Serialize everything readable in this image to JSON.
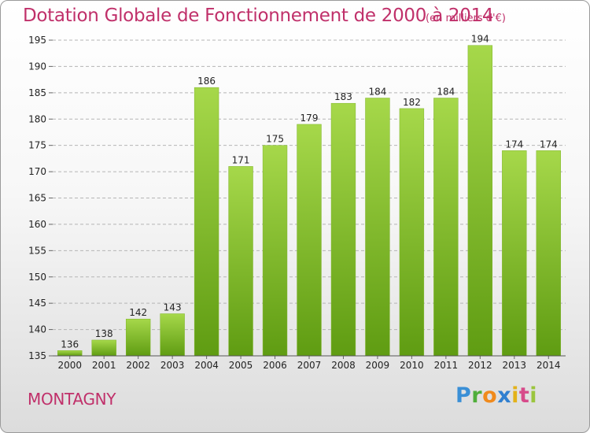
{
  "title": "Dotation Globale de Fonctionnement de 2000 à 2014",
  "subtitle": "(en milliers d'€)",
  "place": "MONTAGNY",
  "logo": {
    "p": "P",
    "r": "r",
    "o": "o",
    "x": "x",
    "i": "i",
    "t": "t",
    "i2": "i"
  },
  "colors": {
    "title": "#c0306a",
    "bar_light": "#a6d84a",
    "bar_dark": "#5f9c12"
  },
  "chart_data": {
    "type": "bar",
    "title": "Dotation Globale de Fonctionnement de 2000 à 2014",
    "subtitle": "(en milliers d'€)",
    "xlabel": "",
    "ylabel": "",
    "categories": [
      "2000",
      "2001",
      "2002",
      "2003",
      "2004",
      "2005",
      "2006",
      "2007",
      "2008",
      "2009",
      "2010",
      "2011",
      "2012",
      "2013",
      "2014"
    ],
    "values": [
      136,
      138,
      142,
      143,
      186,
      171,
      175,
      179,
      183,
      184,
      182,
      184,
      194,
      174,
      174
    ],
    "ylim": [
      135,
      195
    ],
    "yticks": [
      135,
      140,
      145,
      150,
      155,
      160,
      165,
      170,
      175,
      180,
      185,
      190,
      195
    ],
    "grid": "horizontal dashed",
    "data_labels": true
  }
}
